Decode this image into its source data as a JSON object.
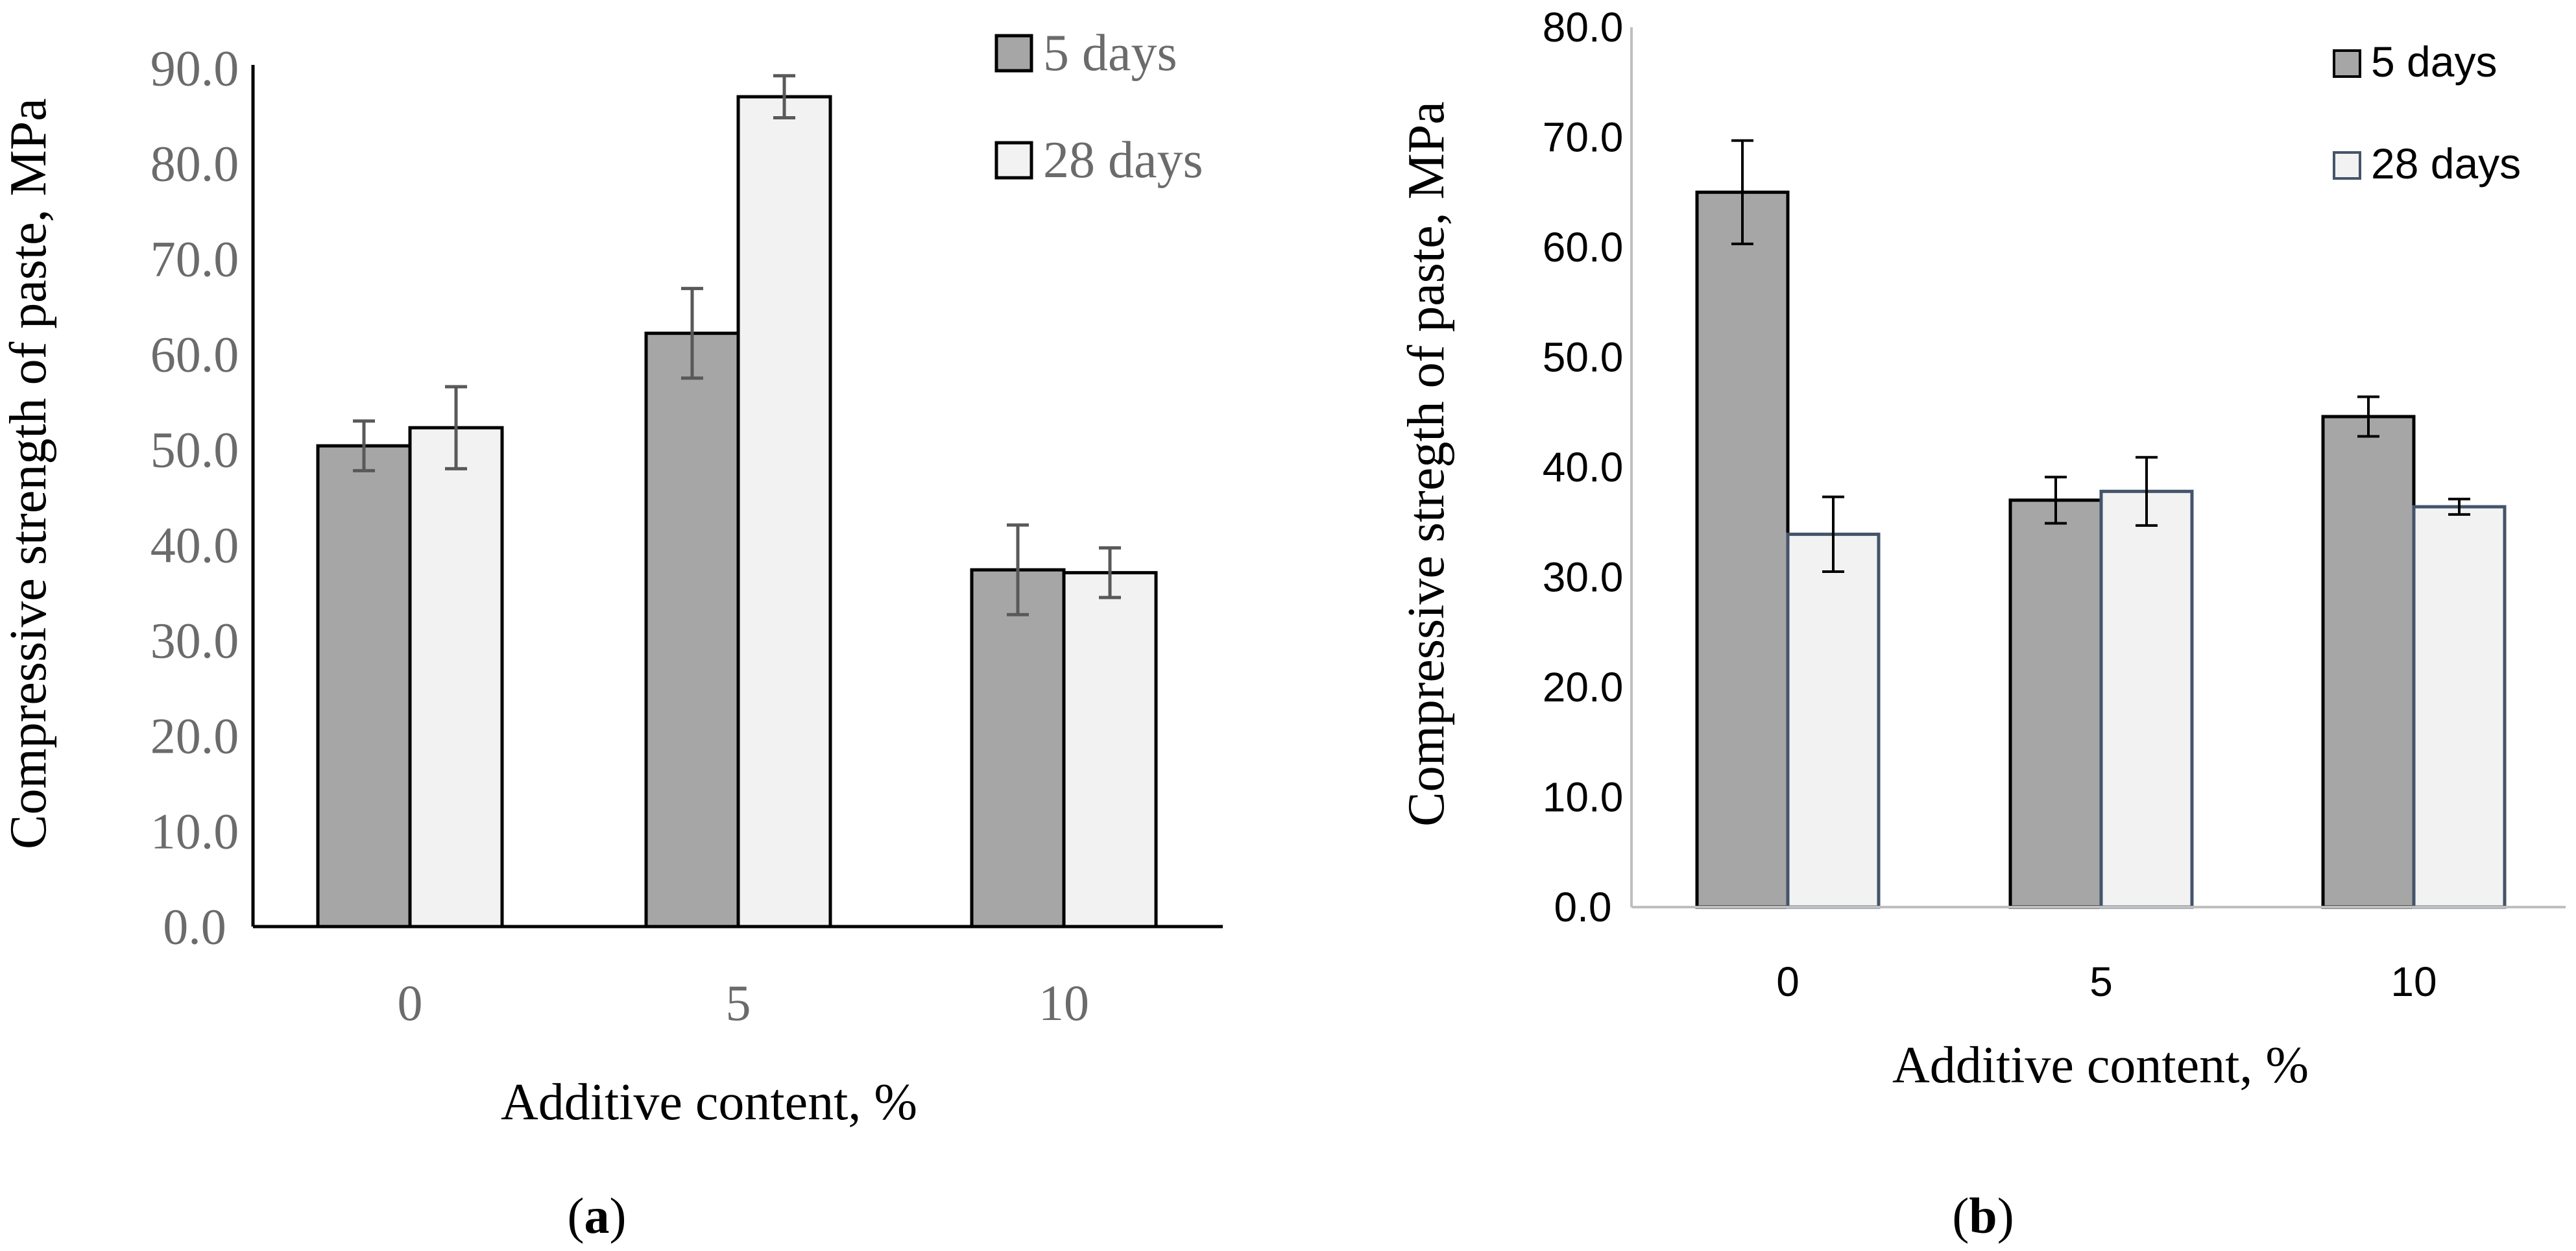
{
  "colors": {
    "bar_5_days": "#a6a6a6",
    "bar_28_days": "#f2f2f2",
    "axis": "#000000",
    "tick_text_a": "#6b6b6b",
    "tick_text_b": "#000000",
    "outline_b_28": "#44546a",
    "error_bar_a": "#595959"
  },
  "chart_data": [
    {
      "type": "bar",
      "panel_label": "a",
      "categories": [
        "0",
        "5",
        "10"
      ],
      "series": [
        {
          "name": "5 days",
          "values": [
            50.4,
            62.2,
            37.4
          ],
          "errors": [
            2.6,
            4.7,
            4.7
          ]
        },
        {
          "name": "28 days",
          "values": [
            52.3,
            87.0,
            37.1
          ],
          "errors": [
            4.3,
            2.2,
            2.6
          ]
        }
      ],
      "xlabel": "Additive content, %",
      "ylabel": "Compressive strength of paste, MPa",
      "ylim": [
        0,
        90
      ],
      "yticks": [
        "0.0",
        "10.0",
        "20.0",
        "30.0",
        "40.0",
        "50.0",
        "60.0",
        "70.0",
        "80.0",
        "90.0"
      ],
      "grid": false,
      "legend_position": "top-right"
    },
    {
      "type": "bar",
      "panel_label": "b",
      "categories": [
        "0",
        "5",
        "10"
      ],
      "series": [
        {
          "name": "5 days",
          "values": [
            65.0,
            37.0,
            44.6
          ],
          "errors": [
            4.7,
            2.1,
            1.8
          ]
        },
        {
          "name": "28 days",
          "values": [
            33.9,
            37.8,
            36.4
          ],
          "errors": [
            3.4,
            3.1,
            0.7
          ]
        }
      ],
      "xlabel": "Additive content, %",
      "ylabel": "Compressive stregth of paste, MPa",
      "ylim": [
        0,
        80
      ],
      "yticks": [
        "0.0",
        "10.0",
        "20.0",
        "30.0",
        "40.0",
        "50.0",
        "60.0",
        "70.0",
        "80.0"
      ],
      "grid": false,
      "legend_position": "top-right"
    }
  ]
}
